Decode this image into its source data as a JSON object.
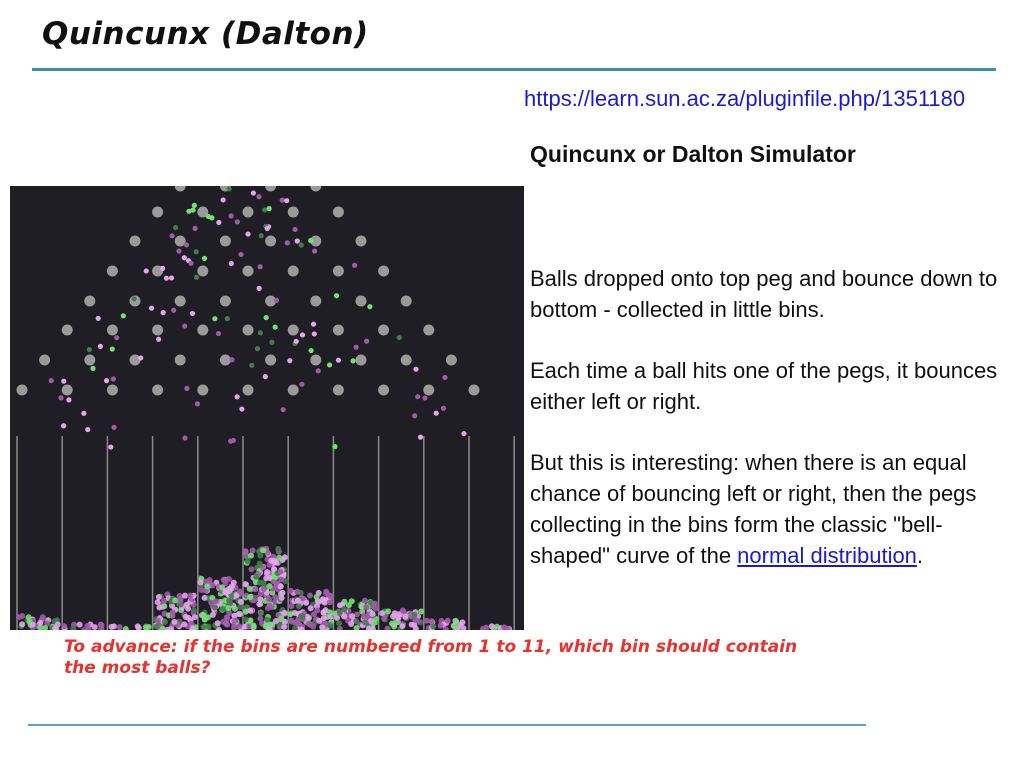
{
  "slide": {
    "title": "Quincunx (Dalton)",
    "url": "https://learn.sun.ac.za/pluginfile.php/1351180",
    "subtitle": "Quincunx or Dalton Simulator",
    "paragraphs": [
      "Balls dropped onto top peg and bounce down to bottom - collected in little bins.",
      "Each time a ball hits one of the pegs, it bounces either left or right."
    ],
    "paragraph3_text": "But this is interesting: when there is an equal chance of bouncing left or right, then the pegs collecting in the bins form the classic \"bell-shaped\" curve of the ",
    "paragraph3_link": "normal distribution",
    "paragraph3_end": ".",
    "question": "To advance: if the bins are numbered from 1 to 11, which bin should contain the most balls?"
  },
  "simulator": {
    "colors": {
      "background": "#1e1e24",
      "peg": "#9a9a9a",
      "divider": "#8a8a8a",
      "ball_pink": "#e7a3ef",
      "ball_purple": "#a05aa8",
      "ball_green": "#6fe36f",
      "ball_darkgreen": "#3f7f47"
    },
    "bin_count": 11
  }
}
